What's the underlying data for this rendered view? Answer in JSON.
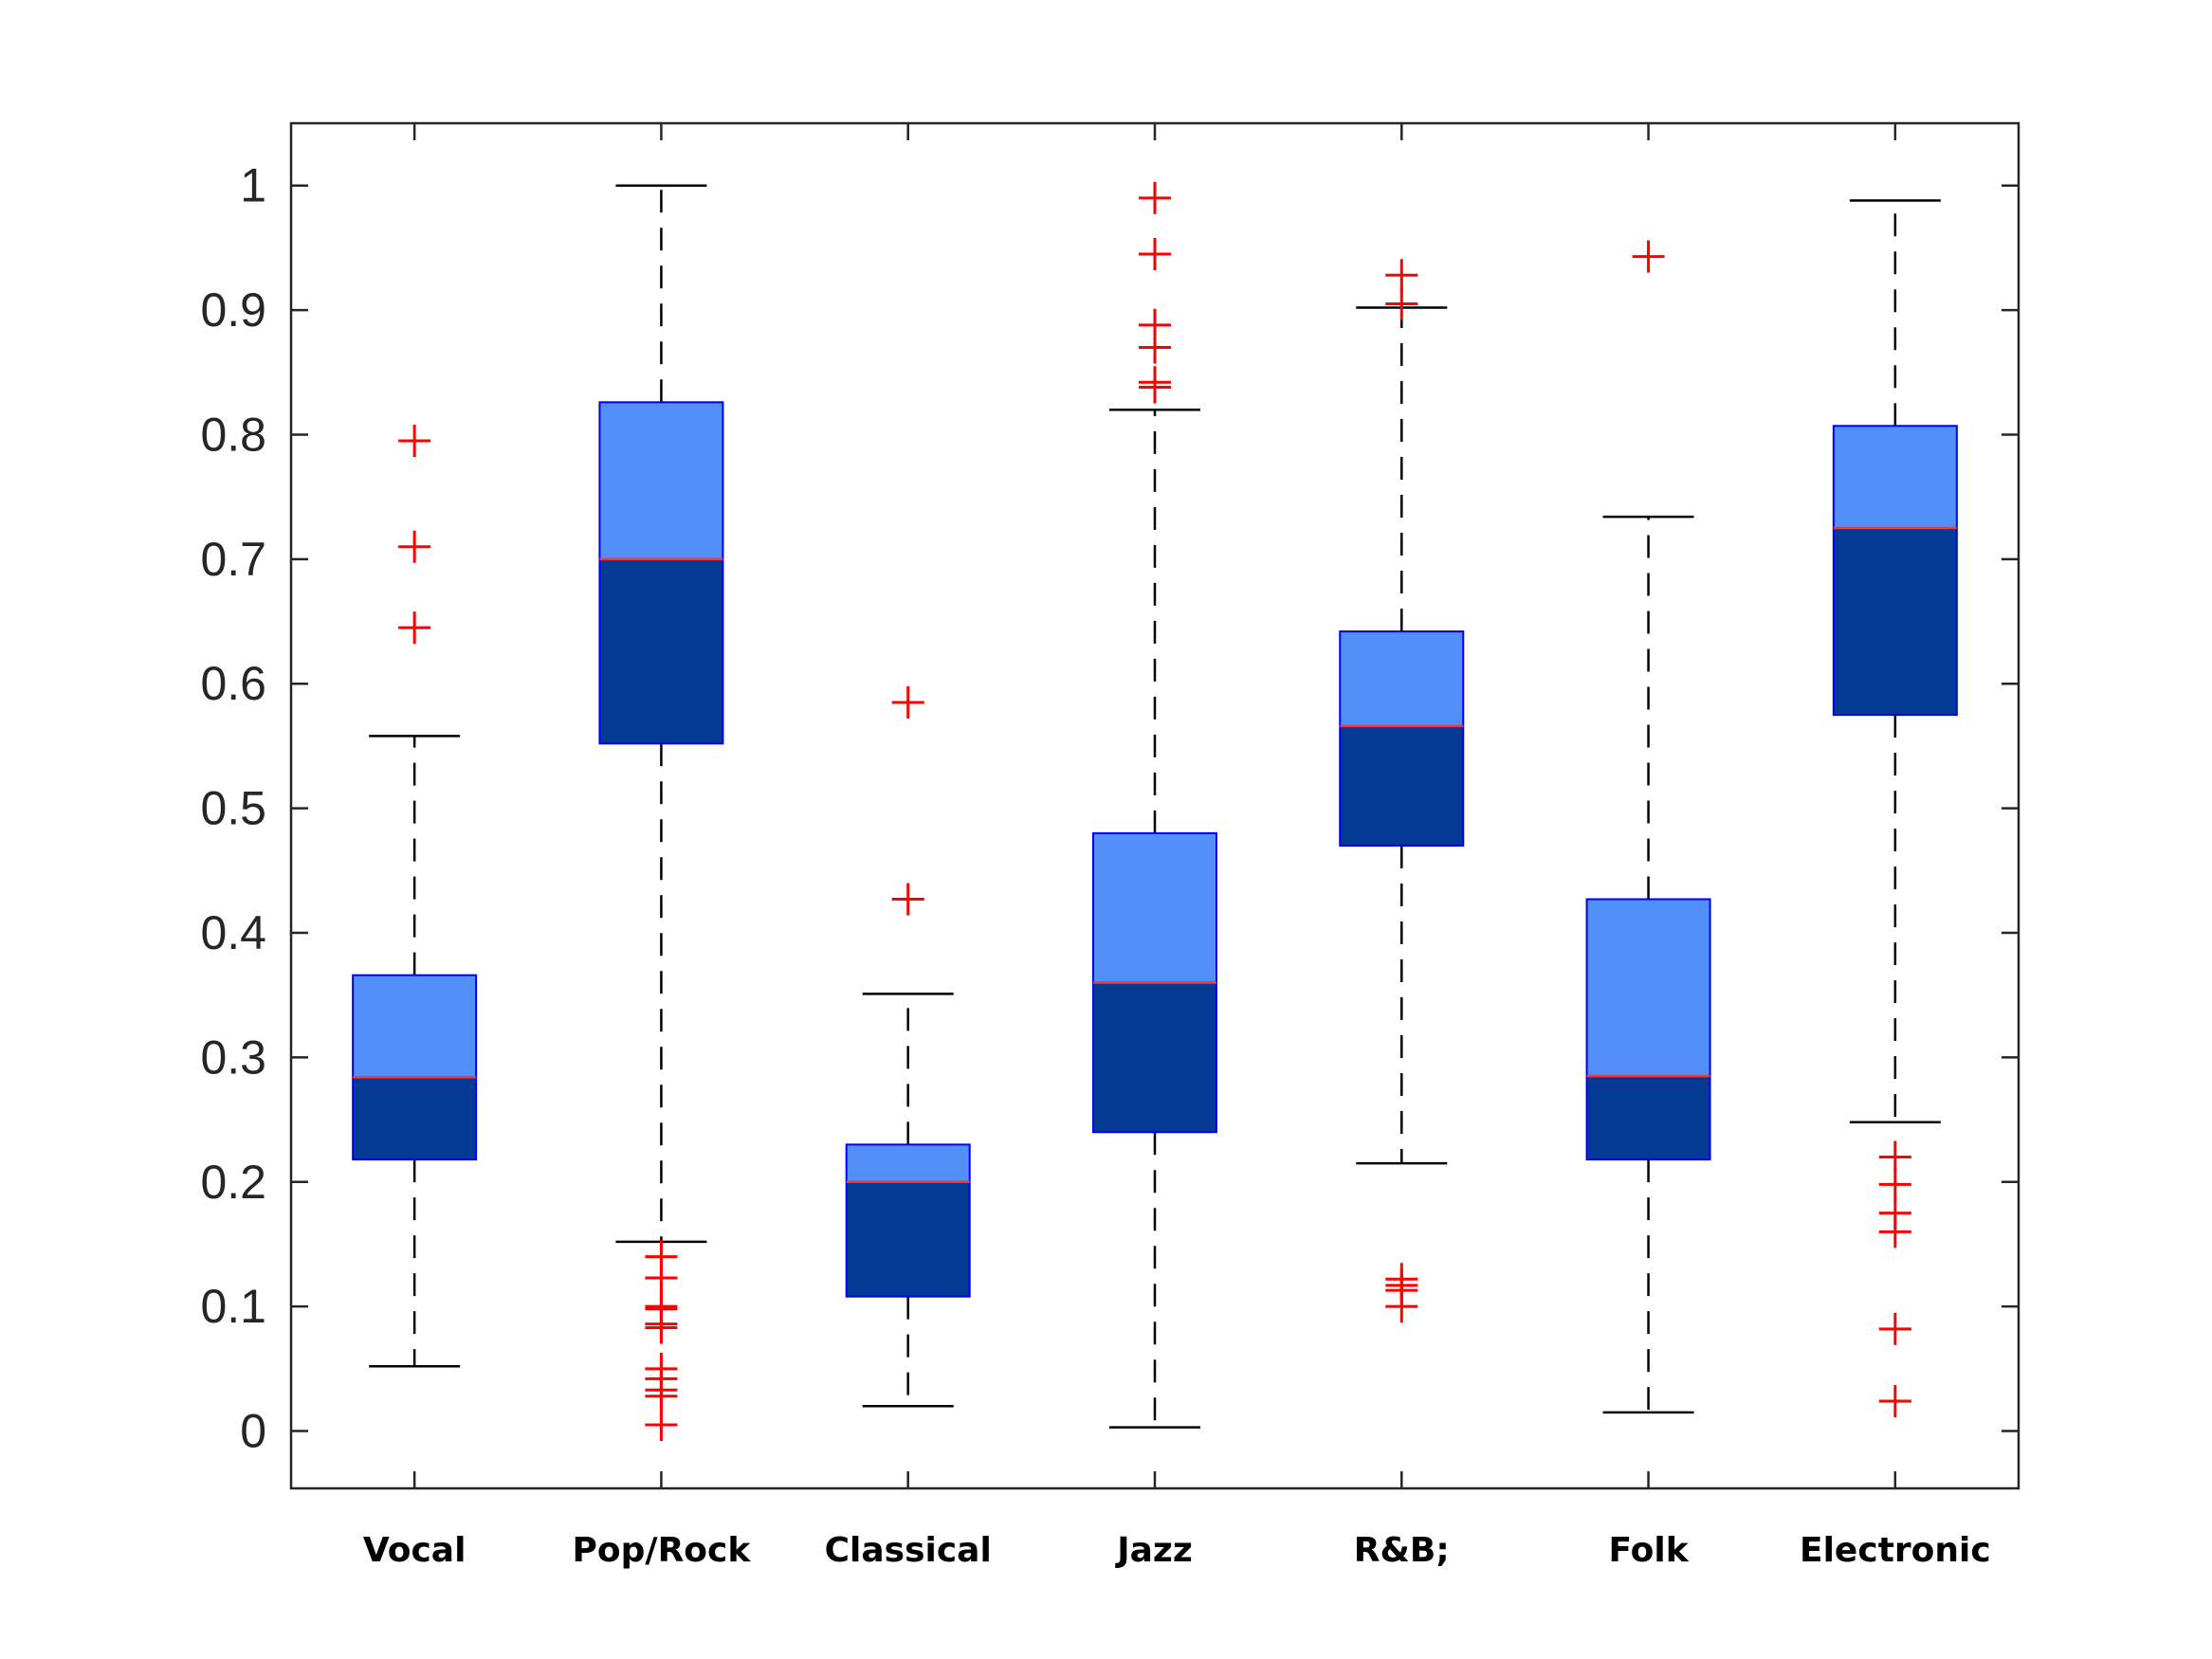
{
  "chart_data": {
    "type": "box",
    "categories": [
      "Vocal",
      "Pop/Rock",
      "Classical",
      "Jazz",
      "R&B;",
      "Folk",
      "Electronic"
    ],
    "ylim": [
      -0.046,
      1.05
    ],
    "yticks": [
      0,
      0.1,
      0.2,
      0.3,
      0.4,
      0.5,
      0.6,
      0.7,
      0.8,
      0.9,
      1
    ],
    "ytick_labels": [
      "0",
      "0.1",
      "0.2",
      "0.3",
      "0.4",
      "0.5",
      "0.6",
      "0.7",
      "0.8",
      "0.9",
      "1"
    ],
    "grid": false,
    "boxes": [
      {
        "whisker_low": 0.052,
        "q1": 0.218,
        "median": 0.284,
        "q3": 0.366,
        "whisker_high": 0.558,
        "outliers": [
          0.795,
          0.71,
          0.645
        ]
      },
      {
        "whisker_low": 0.152,
        "q1": 0.552,
        "median": 0.7,
        "q3": 0.826,
        "whisker_high": 1.0,
        "outliers": [
          0.14,
          0.123,
          0.1,
          0.098,
          0.086,
          0.083,
          0.05,
          0.042,
          0.033,
          0.028,
          0.005
        ]
      },
      {
        "whisker_low": 0.02,
        "q1": 0.108,
        "median": 0.2,
        "q3": 0.23,
        "whisker_high": 0.351,
        "outliers": [
          0.585,
          0.427
        ]
      },
      {
        "whisker_low": 0.003,
        "q1": 0.24,
        "median": 0.36,
        "q3": 0.48,
        "whisker_high": 0.82,
        "outliers": [
          0.99,
          0.945,
          0.888,
          0.87,
          0.842,
          0.838
        ]
      },
      {
        "whisker_low": 0.215,
        "q1": 0.47,
        "median": 0.566,
        "q3": 0.642,
        "whisker_high": 0.902,
        "outliers": [
          0.928,
          0.905,
          0.122,
          0.117,
          0.113,
          0.1
        ]
      },
      {
        "whisker_low": 0.015,
        "q1": 0.218,
        "median": 0.285,
        "q3": 0.427,
        "whisker_high": 0.734,
        "outliers": [
          0.943
        ]
      },
      {
        "whisker_low": 0.248,
        "q1": 0.575,
        "median": 0.725,
        "q3": 0.807,
        "whisker_high": 0.988,
        "outliers": [
          0.22,
          0.198,
          0.175,
          0.16,
          0.082,
          0.024
        ]
      }
    ]
  },
  "colors": {
    "upper_box": "#528ff9",
    "lower_box": "#043a94",
    "box_edge": "#0000ff",
    "median": "#ff3030",
    "whisker": "#000000",
    "outlier": "#ff0000",
    "axes": "#262626"
  }
}
